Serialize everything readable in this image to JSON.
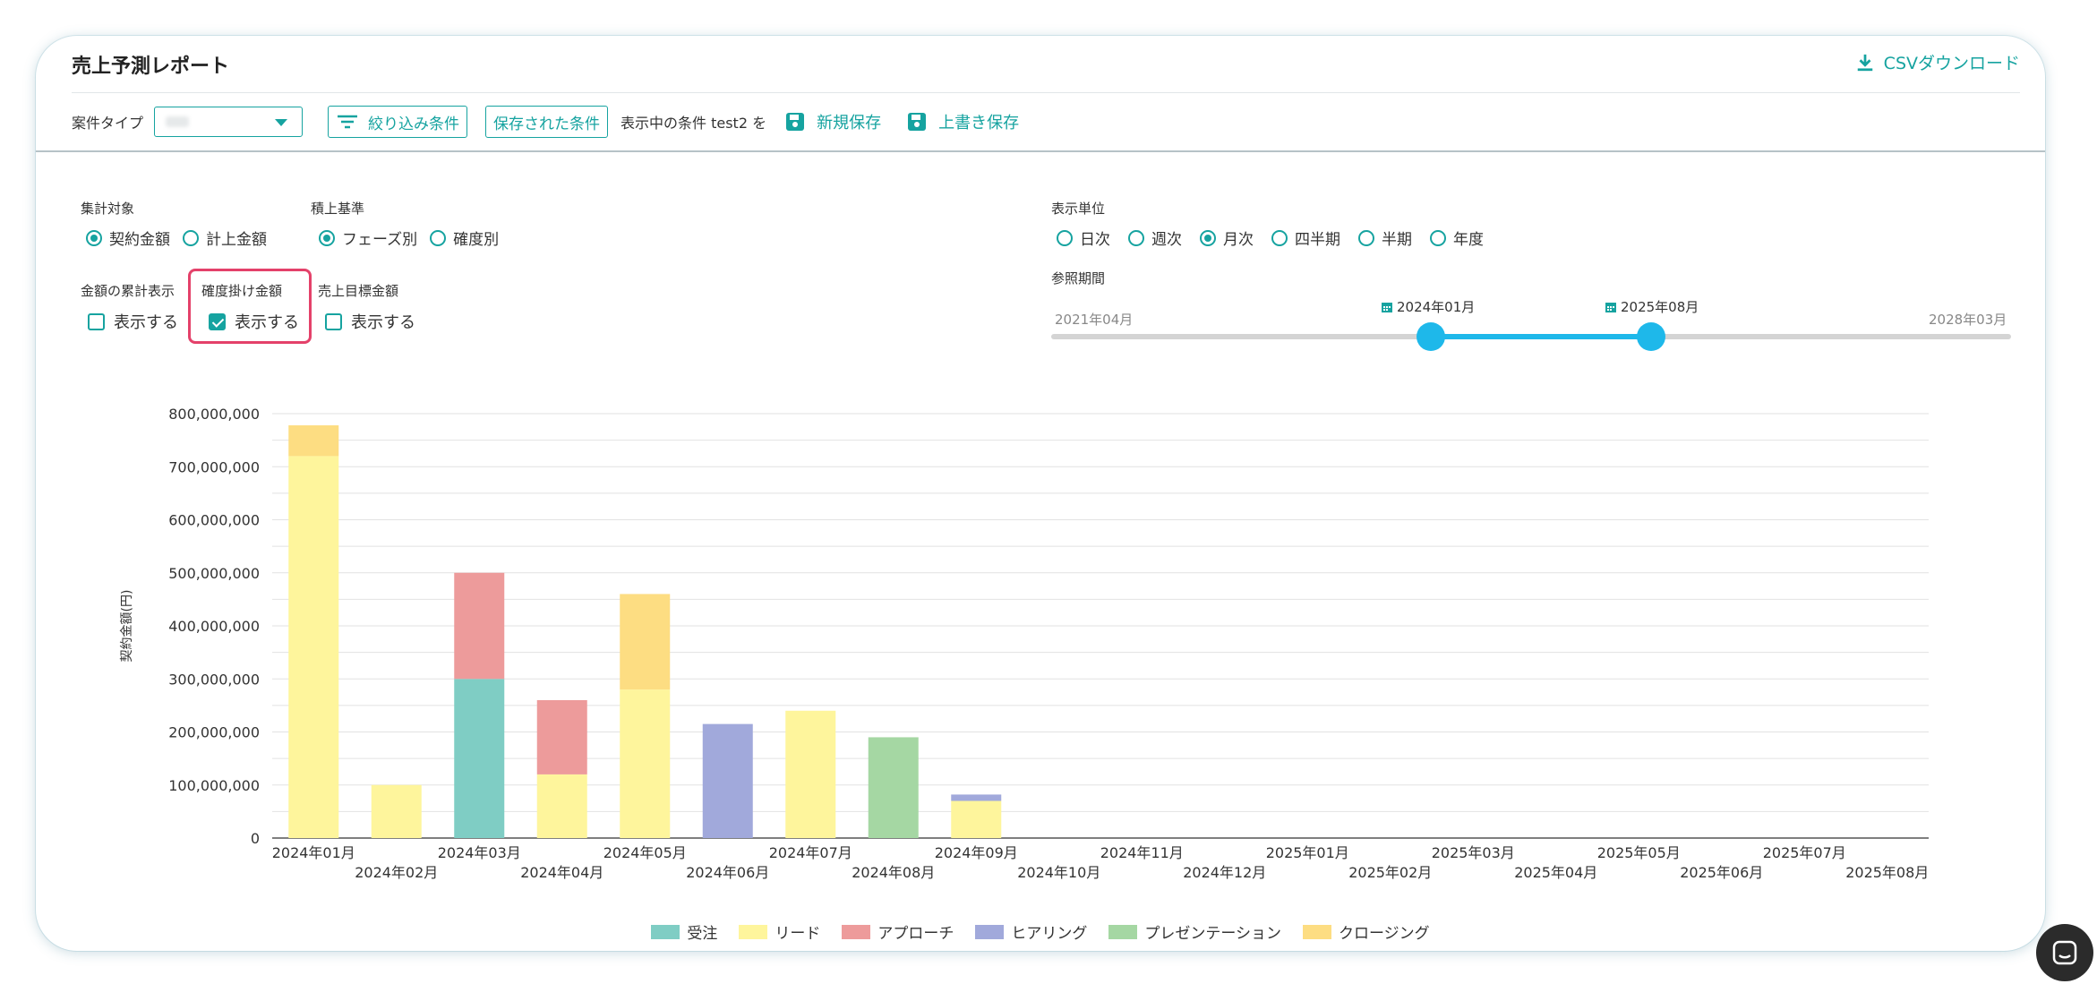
{
  "header": {
    "title": "売上予測レポート",
    "csv_label": "CSVダウンロード"
  },
  "toolbar": {
    "type_label": "案件タイプ",
    "filter_label": "絞り込み条件",
    "saved_label": "保存された条件",
    "current_condition": "表示中の条件 test2 を",
    "new_save_label": "新規保存",
    "overwrite_label": "上書き保存"
  },
  "options": {
    "aggregate": {
      "label": "集計対象",
      "opt1": "契約金額",
      "opt2": "計上金額",
      "selected": "契約金額"
    },
    "stack": {
      "label": "積上基準",
      "opt1": "フェーズ別",
      "opt2": "確度別",
      "selected": "フェーズ別"
    },
    "cumulative": {
      "label": "金額の累計表示",
      "check": "表示する",
      "checked": false
    },
    "weighted": {
      "label": "確度掛け金額",
      "check": "表示する",
      "checked": true
    },
    "target": {
      "label": "売上目標金額",
      "check": "表示する",
      "checked": false
    },
    "unit": {
      "label": "表示単位",
      "opts": [
        "日次",
        "週次",
        "月次",
        "四半期",
        "半期",
        "年度"
      ],
      "selected": "月次"
    },
    "period": {
      "label": "参照期間",
      "min": "2021年04月",
      "max": "2028年03月",
      "start": "2024年01月",
      "end": "2025年08月"
    }
  },
  "colors": {
    "accent": "#16a3a0",
    "slider": "#1eb8ea",
    "highlight": "#e4416a"
  },
  "chart_data": {
    "type": "bar",
    "stacked": true,
    "ylabel": "契約金額(円)",
    "ylim": [
      0,
      800000000
    ],
    "yticks": [
      "0",
      "100,000,000",
      "200,000,000",
      "300,000,000",
      "400,000,000",
      "500,000,000",
      "600,000,000",
      "700,000,000",
      "800,000,000"
    ],
    "categories": [
      "2024年01月",
      "2024年02月",
      "2024年03月",
      "2024年04月",
      "2024年05月",
      "2024年06月",
      "2024年07月",
      "2024年08月",
      "2024年09月",
      "2024年10月",
      "2024年11月",
      "2024年12月",
      "2025年01月",
      "2025年02月",
      "2025年03月",
      "2025年04月",
      "2025年05月",
      "2025年06月",
      "2025年07月",
      "2025年08月"
    ],
    "series": [
      {
        "name": "受注",
        "color": "#7fcdc4",
        "values": [
          0,
          0,
          300000000,
          0,
          0,
          0,
          0,
          0,
          0,
          0,
          0,
          0,
          0,
          0,
          0,
          0,
          0,
          0,
          0,
          0
        ]
      },
      {
        "name": "リード",
        "color": "#fef59c",
        "values": [
          720000000,
          100000000,
          0,
          120000000,
          280000000,
          0,
          240000000,
          0,
          70000000,
          0,
          0,
          0,
          0,
          0,
          0,
          0,
          0,
          0,
          0,
          0
        ]
      },
      {
        "name": "アプローチ",
        "color": "#ed9b9b",
        "values": [
          0,
          0,
          200000000,
          140000000,
          0,
          0,
          0,
          0,
          0,
          0,
          0,
          0,
          0,
          0,
          0,
          0,
          0,
          0,
          0,
          0
        ]
      },
      {
        "name": "ヒアリング",
        "color": "#a1a9db",
        "values": [
          0,
          0,
          0,
          0,
          0,
          215000000,
          0,
          0,
          12000000,
          0,
          0,
          0,
          0,
          0,
          0,
          0,
          0,
          0,
          0,
          0
        ]
      },
      {
        "name": "プレゼンテーション",
        "color": "#a5d7a3",
        "values": [
          0,
          0,
          0,
          0,
          0,
          0,
          0,
          190000000,
          0,
          0,
          0,
          0,
          0,
          0,
          0,
          0,
          0,
          0,
          0,
          0
        ]
      },
      {
        "name": "クロージング",
        "color": "#fddd82",
        "values": [
          58000000,
          0,
          0,
          0,
          180000000,
          0,
          0,
          0,
          0,
          0,
          0,
          0,
          0,
          0,
          0,
          0,
          0,
          0,
          0,
          0
        ]
      }
    ],
    "grid": true,
    "legend": "bottom-center"
  }
}
